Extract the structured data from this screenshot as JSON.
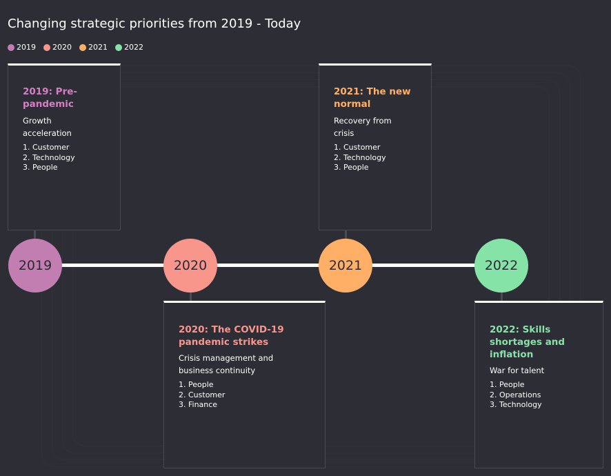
{
  "title": "Changing strategic priorities from 2019 - Today",
  "legend": [
    {
      "label": "2019",
      "color": "#c27eb0"
    },
    {
      "label": "2020",
      "color": "#f9968c"
    },
    {
      "label": "2021",
      "color": "#ffb066"
    },
    {
      "label": "2022",
      "color": "#86e3a7"
    }
  ],
  "milestones": [
    {
      "year": "2019",
      "color": "#c27eb0",
      "heading_color": "#d57ec4",
      "heading": "2019: Pre-pandemic",
      "heading_lines": [
        "2019: Pre-",
        "pandemic"
      ],
      "theme": "Growth acceleration",
      "theme_lines": [
        "Growth",
        "acceleration"
      ],
      "priorities": [
        "1. Customer",
        "2. Technology",
        "3. People"
      ]
    },
    {
      "year": "2020",
      "color": "#f9968c",
      "heading_color": "#f9968c",
      "heading": "2020: The COVID-19 pandemic strikes",
      "heading_lines": [
        "2020: The COVID-19",
        "pandemic strikes"
      ],
      "theme": "Crisis management and business continuity",
      "theme_lines": [
        "Crisis management and",
        "business continuity"
      ],
      "priorities": [
        "1. People",
        "2. Customer",
        "3. Finance"
      ]
    },
    {
      "year": "2021",
      "color": "#ffb066",
      "heading_color": "#ffb066",
      "heading": "2021: The new normal",
      "heading_lines": [
        "2021: The new",
        "normal"
      ],
      "theme": "Recovery from crisis",
      "theme_lines": [
        "Recovery from",
        "crisis"
      ],
      "priorities": [
        "1. Customer",
        "2. Technology",
        "3. People"
      ]
    },
    {
      "year": "2022",
      "color": "#86e3a7",
      "heading_color": "#86e3a7",
      "heading": "2022: Skills shortages and inflation",
      "heading_lines": [
        "2022: Skills",
        "shortages and",
        "inflation"
      ],
      "theme": "War for talent",
      "theme_lines": [
        "War for talent"
      ],
      "priorities": [
        "1. People",
        "2. Operations",
        "3. Technology"
      ]
    }
  ]
}
